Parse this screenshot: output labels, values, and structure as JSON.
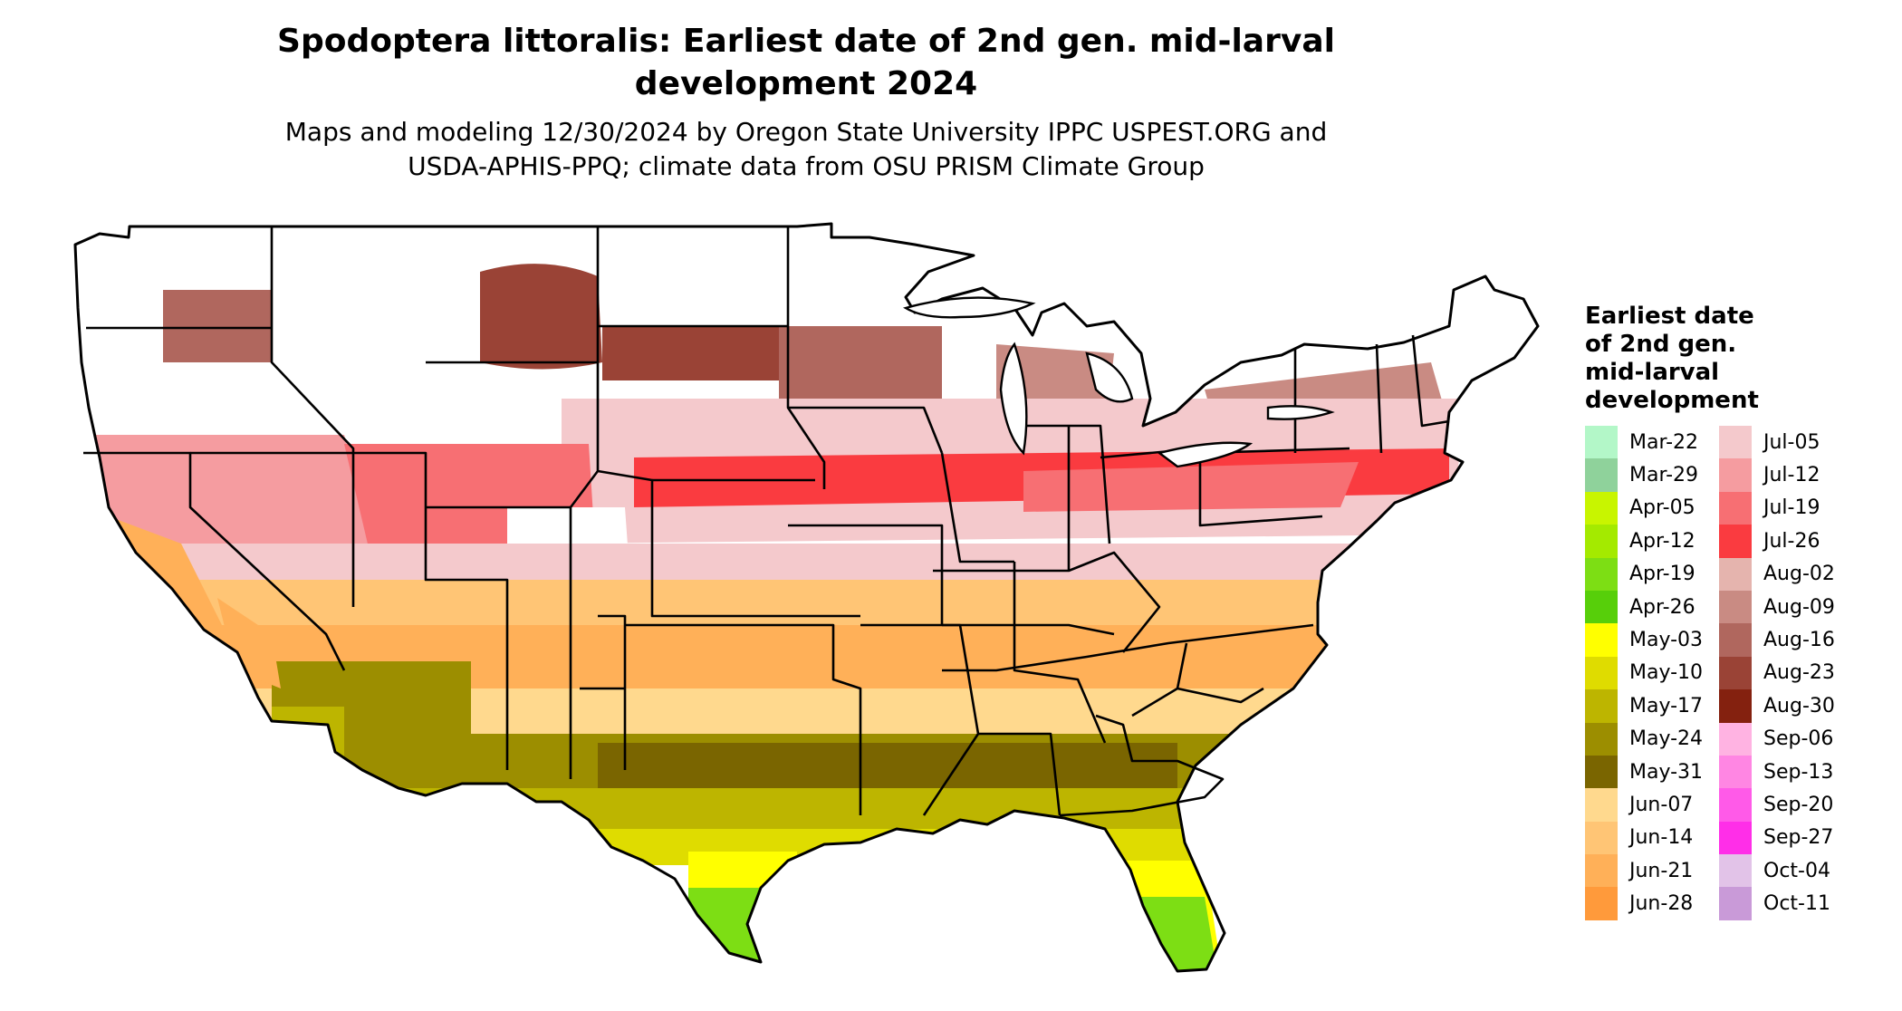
{
  "title": {
    "line1": "Spodoptera littoralis: Earliest date of 2nd gen. mid-larval",
    "line2": "development 2024"
  },
  "subtitle": {
    "line1": "Maps and modeling 12/30/2024 by Oregon State University IPPC USPEST.ORG and",
    "line2": "USDA-APHIS-PPQ; climate data from OSU PRISM Climate Group"
  },
  "legend": {
    "title_lines": [
      "Earliest date",
      "of 2nd gen.",
      "mid-larval",
      "development"
    ],
    "column1": [
      {
        "label": "Mar-22",
        "color": "#b3f7c8"
      },
      {
        "label": "Mar-29",
        "color": "#8fd29b"
      },
      {
        "label": "Apr-05",
        "color": "#c8f500"
      },
      {
        "label": "Apr-12",
        "color": "#a4ea00"
      },
      {
        "label": "Apr-19",
        "color": "#7dde14"
      },
      {
        "label": "Apr-26",
        "color": "#57cf0a"
      },
      {
        "label": "May-03",
        "color": "#ffff00"
      },
      {
        "label": "May-10",
        "color": "#dfdc00"
      },
      {
        "label": "May-17",
        "color": "#bdb500"
      },
      {
        "label": "May-24",
        "color": "#9c8e00"
      },
      {
        "label": "May-31",
        "color": "#7a6500"
      },
      {
        "label": "Jun-07",
        "color": "#ffd98e"
      },
      {
        "label": "Jun-14",
        "color": "#ffc575"
      },
      {
        "label": "Jun-21",
        "color": "#ffb058"
      },
      {
        "label": "Jun-28",
        "color": "#ff9a3b"
      }
    ],
    "column2": [
      {
        "label": "Jul-05",
        "color": "#f4c9cc"
      },
      {
        "label": "Jul-12",
        "color": "#f59ca0"
      },
      {
        "label": "Jul-19",
        "color": "#f76f73"
      },
      {
        "label": "Jul-26",
        "color": "#fa3b40"
      },
      {
        "label": "Aug-02",
        "color": "#e5b4ae"
      },
      {
        "label": "Aug-09",
        "color": "#c98b83"
      },
      {
        "label": "Aug-16",
        "color": "#b0675e"
      },
      {
        "label": "Aug-23",
        "color": "#9a4336"
      },
      {
        "label": "Aug-30",
        "color": "#84210f"
      },
      {
        "label": "Sep-06",
        "color": "#ffb3e2"
      },
      {
        "label": "Sep-13",
        "color": "#ff86e3"
      },
      {
        "label": "Sep-20",
        "color": "#ff5ae8"
      },
      {
        "label": "Sep-27",
        "color": "#ff2ee8"
      },
      {
        "label": "Oct-04",
        "color": "#e2c3e8"
      },
      {
        "label": "Oct-11",
        "color": "#c99ad8"
      }
    ]
  }
}
